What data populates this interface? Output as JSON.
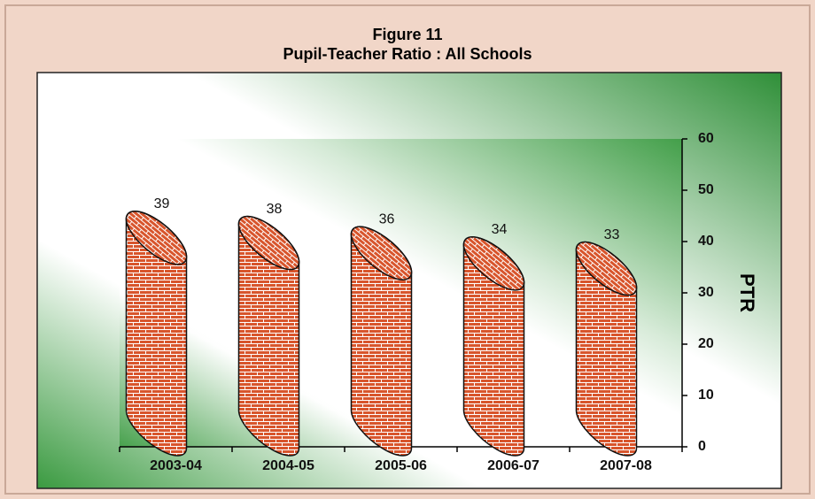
{
  "chart_data": {
    "type": "bar",
    "title": "Figure 11",
    "subtitle": "Pupil-Teacher Ratio : All Schools",
    "y_axis_label": "PTR",
    "categories": [
      "2003-04",
      "2004-05",
      "2005-06",
      "2006-07",
      "2007-08"
    ],
    "values": [
      39,
      38,
      36,
      34,
      33
    ],
    "color": "#d8552c",
    "ylim": [
      0,
      60
    ],
    "yticks": [
      0,
      10,
      20,
      30,
      40,
      50,
      60
    ],
    "axis_side": "right"
  }
}
